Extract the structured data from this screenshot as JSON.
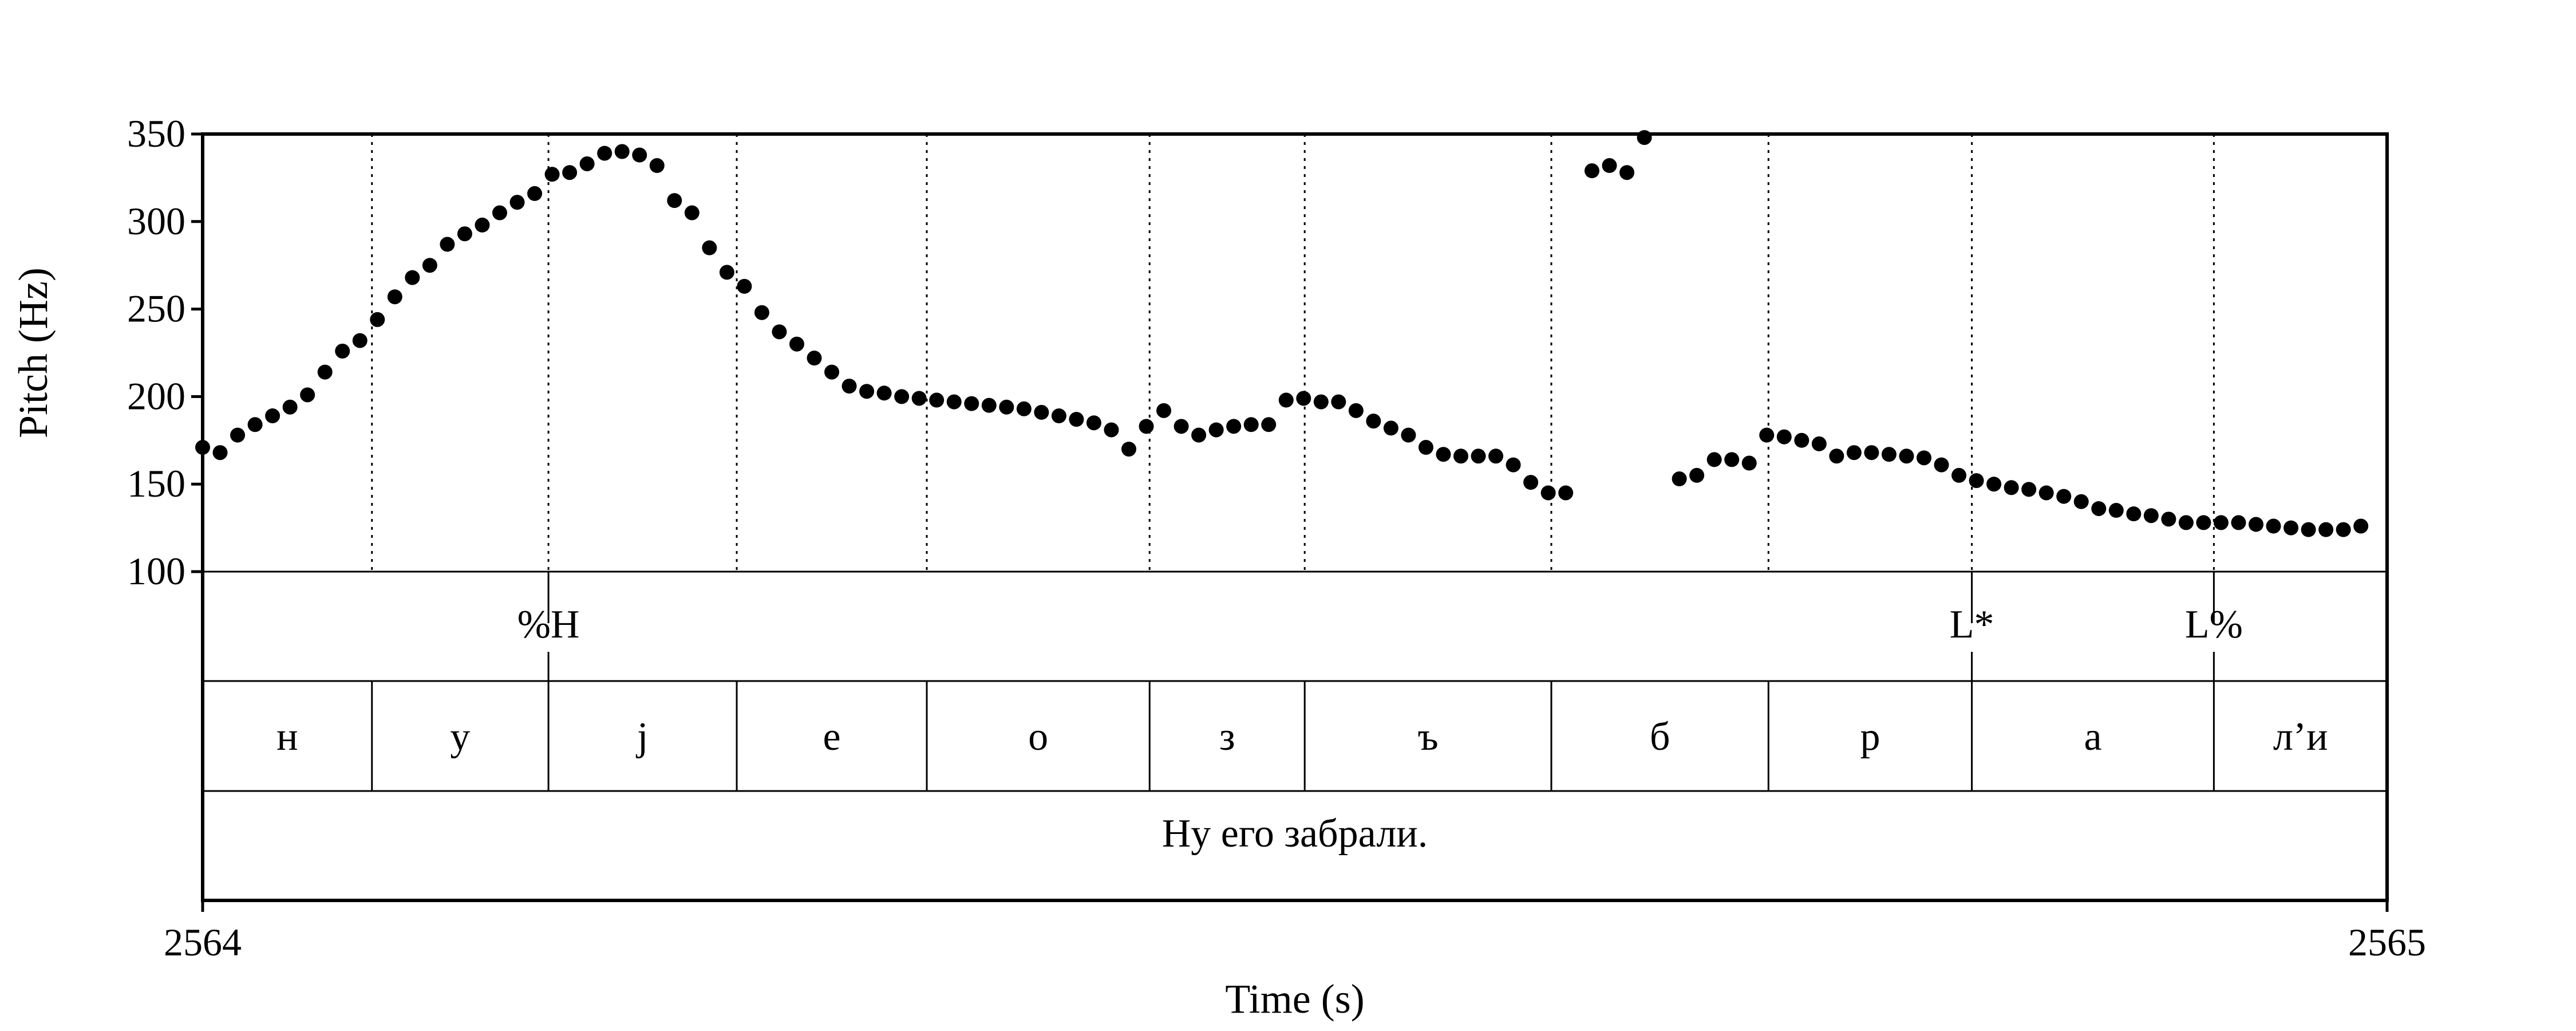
{
  "chart_data": {
    "type": "scatter",
    "title": "",
    "xlabel": "Time (s)",
    "ylabel": "Pitch (Hz)",
    "xlim": [
      2564,
      2565
    ],
    "ylim": [
      100,
      350
    ],
    "x_ticks": [
      "2564",
      "2565"
    ],
    "y_ticks": [
      "100",
      "150",
      "200",
      "250",
      "300",
      "350"
    ],
    "grid": false,
    "series": [
      {
        "points": [
          [
            2564.0,
            171
          ],
          [
            2564.008,
            168
          ],
          [
            2564.016,
            178
          ],
          [
            2564.024,
            184
          ],
          [
            2564.032,
            189
          ],
          [
            2564.04,
            194
          ],
          [
            2564.048,
            201
          ],
          [
            2564.056,
            214
          ],
          [
            2564.064,
            226
          ],
          [
            2564.072,
            232
          ],
          [
            2564.08,
            244
          ],
          [
            2564.088,
            257
          ],
          [
            2564.096,
            268
          ],
          [
            2564.104,
            275
          ],
          [
            2564.112,
            287
          ],
          [
            2564.12,
            293
          ],
          [
            2564.128,
            298
          ],
          [
            2564.136,
            305
          ],
          [
            2564.144,
            311
          ],
          [
            2564.152,
            316
          ],
          [
            2564.16,
            327
          ],
          [
            2564.168,
            328
          ],
          [
            2564.176,
            333
          ],
          [
            2564.184,
            339
          ],
          [
            2564.192,
            340
          ],
          [
            2564.2,
            338
          ],
          [
            2564.208,
            332
          ],
          [
            2564.216,
            312
          ],
          [
            2564.224,
            305
          ],
          [
            2564.232,
            285
          ],
          [
            2564.24,
            271
          ],
          [
            2564.248,
            263
          ],
          [
            2564.256,
            248
          ],
          [
            2564.264,
            237
          ],
          [
            2564.272,
            230
          ],
          [
            2564.28,
            222
          ],
          [
            2564.288,
            214
          ],
          [
            2564.296,
            206
          ],
          [
            2564.304,
            203
          ],
          [
            2564.312,
            202
          ],
          [
            2564.32,
            200
          ],
          [
            2564.328,
            199
          ],
          [
            2564.336,
            198
          ],
          [
            2564.344,
            197
          ],
          [
            2564.352,
            196
          ],
          [
            2564.36,
            195
          ],
          [
            2564.368,
            194
          ],
          [
            2564.376,
            193
          ],
          [
            2564.384,
            191
          ],
          [
            2564.392,
            189
          ],
          [
            2564.4,
            187
          ],
          [
            2564.408,
            185
          ],
          [
            2564.416,
            181
          ],
          [
            2564.424,
            170
          ],
          [
            2564.432,
            183
          ],
          [
            2564.44,
            192
          ],
          [
            2564.448,
            183
          ],
          [
            2564.456,
            178
          ],
          [
            2564.464,
            181
          ],
          [
            2564.472,
            183
          ],
          [
            2564.48,
            184
          ],
          [
            2564.488,
            184
          ],
          [
            2564.496,
            198
          ],
          [
            2564.504,
            199
          ],
          [
            2564.512,
            197
          ],
          [
            2564.52,
            197
          ],
          [
            2564.528,
            192
          ],
          [
            2564.536,
            186
          ],
          [
            2564.544,
            182
          ],
          [
            2564.552,
            178
          ],
          [
            2564.56,
            171
          ],
          [
            2564.568,
            167
          ],
          [
            2564.576,
            166
          ],
          [
            2564.584,
            166
          ],
          [
            2564.592,
            166
          ],
          [
            2564.6,
            161
          ],
          [
            2564.608,
            151
          ],
          [
            2564.616,
            145
          ],
          [
            2564.624,
            145
          ],
          [
            2564.636,
            329
          ],
          [
            2564.644,
            332
          ],
          [
            2564.652,
            328
          ],
          [
            2564.66,
            348
          ],
          [
            2564.676,
            153
          ],
          [
            2564.684,
            155
          ],
          [
            2564.692,
            164
          ],
          [
            2564.7,
            164
          ],
          [
            2564.708,
            162
          ],
          [
            2564.716,
            178
          ],
          [
            2564.724,
            177
          ],
          [
            2564.732,
            175
          ],
          [
            2564.74,
            173
          ],
          [
            2564.748,
            166
          ],
          [
            2564.756,
            168
          ],
          [
            2564.764,
            168
          ],
          [
            2564.772,
            167
          ],
          [
            2564.78,
            166
          ],
          [
            2564.788,
            165
          ],
          [
            2564.796,
            161
          ],
          [
            2564.804,
            155
          ],
          [
            2564.812,
            152
          ],
          [
            2564.82,
            150
          ],
          [
            2564.828,
            148
          ],
          [
            2564.836,
            147
          ],
          [
            2564.844,
            145
          ],
          [
            2564.852,
            143
          ],
          [
            2564.86,
            140
          ],
          [
            2564.868,
            136
          ],
          [
            2564.876,
            135
          ],
          [
            2564.884,
            133
          ],
          [
            2564.892,
            132
          ],
          [
            2564.9,
            130
          ],
          [
            2564.908,
            128
          ],
          [
            2564.916,
            128
          ],
          [
            2564.924,
            128
          ],
          [
            2564.932,
            128
          ],
          [
            2564.94,
            127
          ],
          [
            2564.948,
            126
          ],
          [
            2564.956,
            125
          ],
          [
            2564.964,
            124
          ],
          [
            2564.972,
            124
          ],
          [
            2564.98,
            124
          ],
          [
            2564.988,
            126
          ]
        ]
      }
    ],
    "boundaries": [
      2564.0775,
      2564.1583,
      2564.2445,
      2564.3315,
      2564.4335,
      2564.5045,
      2564.6174,
      2564.7168,
      2564.8099,
      2564.9207
    ],
    "tones": [
      {
        "label": "%H",
        "time": 2564.1583
      },
      {
        "label": "L*",
        "time": 2564.8099
      },
      {
        "label": "L%",
        "time": 2564.9207
      }
    ],
    "segments": [
      {
        "label": "н",
        "start": 2564.0,
        "end": 2564.0775
      },
      {
        "label": "у",
        "start": 2564.0775,
        "end": 2564.1583
      },
      {
        "label": "j",
        "start": 2564.1583,
        "end": 2564.2445
      },
      {
        "label": "е",
        "start": 2564.2445,
        "end": 2564.3315
      },
      {
        "label": "о",
        "start": 2564.3315,
        "end": 2564.4335
      },
      {
        "label": "з",
        "start": 2564.4335,
        "end": 2564.5045
      },
      {
        "label": "ъ",
        "start": 2564.5045,
        "end": 2564.6174
      },
      {
        "label": "б",
        "start": 2564.6174,
        "end": 2564.7168
      },
      {
        "label": "р",
        "start": 2564.7168,
        "end": 2564.8099
      },
      {
        "label": "а",
        "start": 2564.8099,
        "end": 2564.9207
      },
      {
        "label": "л’и",
        "start": 2564.9207,
        "end": 2565.0
      }
    ],
    "sentence": "Ну его забрали."
  }
}
